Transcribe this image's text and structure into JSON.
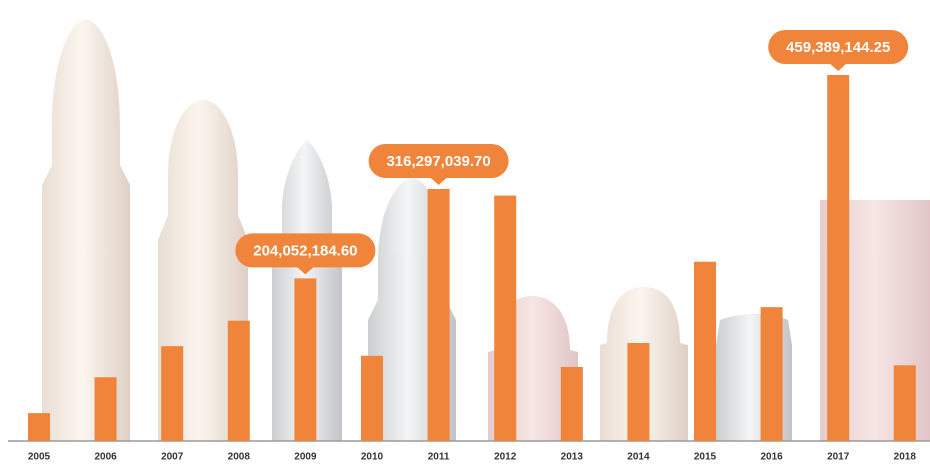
{
  "chart_data": {
    "type": "bar",
    "categories": [
      "2005",
      "2006",
      "2007",
      "2008",
      "2009",
      "2010",
      "2011",
      "2012",
      "2013",
      "2014",
      "2015",
      "2016",
      "2017",
      "2018"
    ],
    "values": [
      35000000,
      80000000,
      119000000,
      151000000,
      204052184.6,
      107000000,
      316297039.7,
      308000000,
      93000000,
      123000000,
      225000000,
      168000000,
      459389144.25,
      95000000
    ],
    "value_labels": [
      null,
      null,
      null,
      null,
      "204,052,184.60",
      null,
      "316,297,039.70",
      null,
      null,
      null,
      null,
      null,
      "459,389,144.25",
      null
    ],
    "color": "#f0843a",
    "ylim": [
      0,
      459389144.25
    ]
  }
}
